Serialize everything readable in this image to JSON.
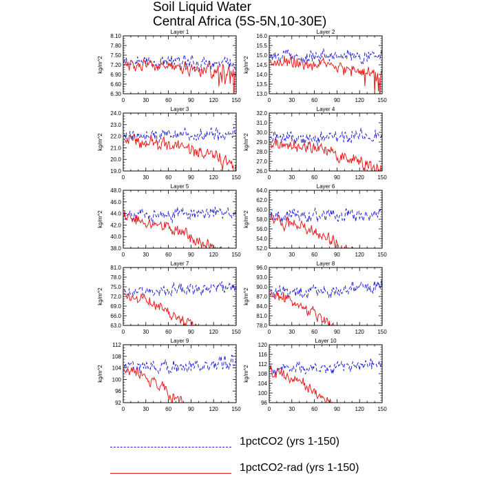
{
  "title_lines": [
    "Soil Liquid Water",
    "Central Africa (5S-5N,10-30E)"
  ],
  "legend": [
    {
      "label": "1pctCO2 (yrs 1-150)",
      "color": "#1f1fd6",
      "dash": "dashed"
    },
    {
      "label": "1pctCO2-rad (yrs 1-150)",
      "color": "#e81c1c",
      "dash": "solid"
    }
  ],
  "chart_data": [
    {
      "type": "line",
      "title": "Layer 1",
      "ylabel": "kg/m^2",
      "xlim": [
        0,
        150
      ],
      "ylim": [
        6.3,
        8.1
      ],
      "xticks": [
        0,
        30,
        60,
        90,
        120,
        150
      ],
      "yticks": [
        "6.30",
        "6.60",
        "6.90",
        "7.20",
        "7.50",
        "7.80",
        "8.10"
      ],
      "base": [
        7.3,
        7.2
      ],
      "amp": [
        0.26,
        0.24
      ],
      "trend": [
        0.0,
        -0.32
      ],
      "series": [
        {
          "name": "1pctCO2 (yrs 1-150)"
        },
        {
          "name": "1pctCO2-rad (yrs 1-150)"
        }
      ]
    },
    {
      "type": "line",
      "title": "Layer 2",
      "ylabel": "kg/m^2",
      "xlim": [
        0,
        150
      ],
      "ylim": [
        13.0,
        16.0
      ],
      "xticks": [
        0,
        30,
        60,
        90,
        120,
        150
      ],
      "yticks": [
        "13.0",
        "13.5",
        "14.0",
        "14.5",
        "15.0",
        "15.5",
        "16.0"
      ],
      "base": [
        14.9,
        14.7
      ],
      "amp": [
        0.45,
        0.42
      ],
      "trend": [
        0.05,
        -0.6
      ],
      "series": [
        {
          "name": "1pctCO2 (yrs 1-150)"
        },
        {
          "name": "1pctCO2-rad (yrs 1-150)"
        }
      ]
    },
    {
      "type": "line",
      "title": "Layer 3",
      "ylabel": "kg/m^2",
      "xlim": [
        0,
        150
      ],
      "ylim": [
        19.0,
        24.0
      ],
      "xticks": [
        0,
        30,
        60,
        90,
        120,
        150
      ],
      "yticks": [
        "19.0",
        "20.0",
        "21.0",
        "22.0",
        "23.0",
        "24.0"
      ],
      "base": [
        22.0,
        21.7
      ],
      "amp": [
        0.75,
        0.7
      ],
      "trend": [
        0.05,
        -0.9
      ],
      "series": [
        {
          "name": "1pctCO2 (yrs 1-150)"
        },
        {
          "name": "1pctCO2-rad (yrs 1-150)"
        }
      ]
    },
    {
      "type": "line",
      "title": "Layer 4",
      "ylabel": "kg/m^2",
      "xlim": [
        0,
        150
      ],
      "ylim": [
        26.0,
        32.0
      ],
      "xticks": [
        0,
        30,
        60,
        90,
        120,
        150
      ],
      "yticks": [
        "26.0",
        "27.0",
        "28.0",
        "29.0",
        "30.0",
        "31.0",
        "32.0"
      ],
      "base": [
        29.4,
        29.0
      ],
      "amp": [
        0.85,
        0.8
      ],
      "trend": [
        0.1,
        -1.1
      ],
      "series": [
        {
          "name": "1pctCO2 (yrs 1-150)"
        },
        {
          "name": "1pctCO2-rad (yrs 1-150)"
        }
      ]
    },
    {
      "type": "line",
      "title": "Layer 5",
      "ylabel": "kg/m^2",
      "xlim": [
        0,
        150
      ],
      "ylim": [
        38.0,
        48.0
      ],
      "xticks": [
        0,
        30,
        60,
        90,
        120,
        150
      ],
      "yticks": [
        "38.0",
        "40.0",
        "42.0",
        "44.0",
        "46.0",
        "48.0"
      ],
      "base": [
        43.8,
        43.3
      ],
      "amp": [
        1.4,
        1.3
      ],
      "trend": [
        0.1,
        -1.8
      ],
      "series": [
        {
          "name": "1pctCO2 (yrs 1-150)"
        },
        {
          "name": "1pctCO2-rad (yrs 1-150)"
        }
      ]
    },
    {
      "type": "line",
      "title": "Layer 6",
      "ylabel": "kg/m^2",
      "xlim": [
        0,
        150
      ],
      "ylim": [
        52.0,
        64.0
      ],
      "xticks": [
        0,
        30,
        60,
        90,
        120,
        150
      ],
      "yticks": [
        "52.0",
        "54.0",
        "56.0",
        "58.0",
        "60.0",
        "62.0",
        "64.0"
      ],
      "base": [
        58.6,
        57.9
      ],
      "amp": [
        1.7,
        1.6
      ],
      "trend": [
        0.1,
        -2.2
      ],
      "series": [
        {
          "name": "1pctCO2 (yrs 1-150)"
        },
        {
          "name": "1pctCO2-rad (yrs 1-150)"
        }
      ]
    },
    {
      "type": "line",
      "title": "Layer 7",
      "ylabel": "kg/m^2",
      "xlim": [
        0,
        150
      ],
      "ylim": [
        63.0,
        81.0
      ],
      "xticks": [
        0,
        30,
        60,
        90,
        120,
        150
      ],
      "yticks": [
        "63.0",
        "66.0",
        "69.0",
        "72.0",
        "75.0",
        "78.0",
        "81.0"
      ],
      "base": [
        73.6,
        72.6
      ],
      "amp": [
        2.4,
        2.2
      ],
      "trend": [
        0.2,
        -3.0
      ],
      "series": [
        {
          "name": "1pctCO2 (yrs 1-150)"
        },
        {
          "name": "1pctCO2-rad (yrs 1-150)"
        }
      ]
    },
    {
      "type": "line",
      "title": "Layer 8",
      "ylabel": "kg/m^2",
      "xlim": [
        0,
        150
      ],
      "ylim": [
        78.0,
        96.0
      ],
      "xticks": [
        0,
        30,
        60,
        90,
        120,
        150
      ],
      "yticks": [
        "78.0",
        "81.0",
        "84.0",
        "87.0",
        "90.0",
        "93.0",
        "96.0"
      ],
      "base": [
        88.4,
        87.4
      ],
      "amp": [
        2.5,
        2.3
      ],
      "trend": [
        0.2,
        -3.2
      ],
      "series": [
        {
          "name": "1pctCO2 (yrs 1-150)"
        },
        {
          "name": "1pctCO2-rad (yrs 1-150)"
        }
      ]
    },
    {
      "type": "line",
      "title": "Layer 9",
      "ylabel": "kg/m^2",
      "xlim": [
        0,
        150
      ],
      "ylim": [
        92,
        112
      ],
      "xticks": [
        0,
        30,
        60,
        90,
        120,
        150
      ],
      "yticks": [
        "92",
        "96",
        "100",
        "104",
        "108",
        "112"
      ],
      "base": [
        104.0,
        103.0
      ],
      "amp": [
        2.9,
        2.7
      ],
      "trend": [
        0.2,
        -3.6
      ],
      "series": [
        {
          "name": "1pctCO2 (yrs 1-150)"
        },
        {
          "name": "1pctCO2-rad (yrs 1-150)"
        }
      ]
    },
    {
      "type": "line",
      "title": "Layer 10",
      "ylabel": "kg/m^2",
      "xlim": [
        0,
        150
      ],
      "ylim": [
        96,
        120
      ],
      "xticks": [
        0,
        30,
        60,
        90,
        120,
        150
      ],
      "yticks": [
        "96",
        "100",
        "104",
        "108",
        "112",
        "116",
        "120"
      ],
      "base": [
        110.0,
        109.0
      ],
      "amp": [
        3.1,
        2.9
      ],
      "trend": [
        0.2,
        -3.8
      ],
      "series": [
        {
          "name": "1pctCO2 (yrs 1-150)"
        },
        {
          "name": "1pctCO2-rad (yrs 1-150)"
        }
      ]
    }
  ]
}
